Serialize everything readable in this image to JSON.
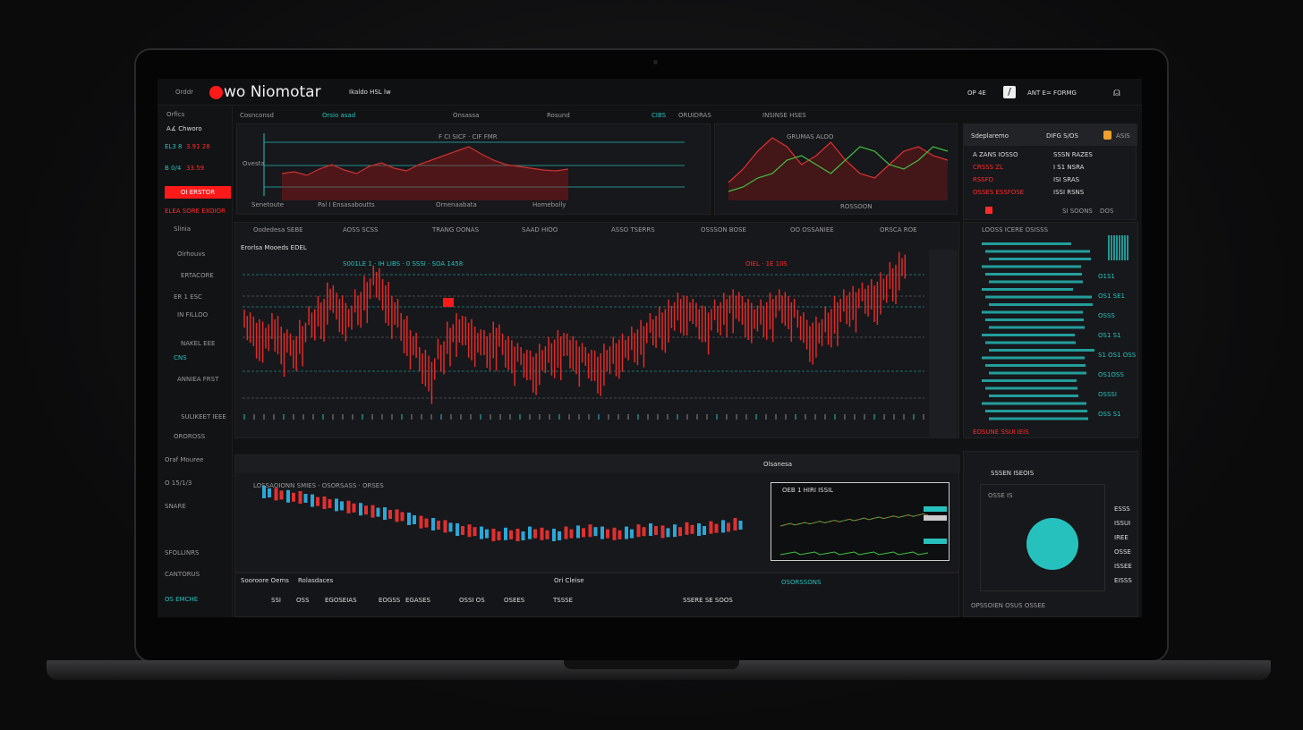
{
  "header": {
    "left_label": "Orddr",
    "logo_text": "wo Niomotar",
    "subtitle": "Ikaldo HSL lw",
    "right_label": "OP 4E",
    "right_text": "ANT E= FORMG",
    "brand_color": "#ff1a1a",
    "accent_color": "#27c1bd"
  },
  "sidebar": {
    "top": "Orfics",
    "account": "A∡ Chworo",
    "rows": [
      {
        "a": "EL3 8",
        "b": "3.91 28"
      },
      {
        "a": "B 0/4",
        "b": "33.59"
      }
    ],
    "action_button": "OI ERSTOR",
    "footer": "ELEA SORE  EXOIOR",
    "items": [
      "Slinia",
      "Oirhouvs",
      "ERTACORE",
      "ER 1 ESC",
      "IN FILLOO",
      "NAKEL EEE",
      "CNS",
      "ANNIEA FRST",
      "SULIKEET IEEE",
      "OROROSS"
    ],
    "lower": [
      "Oraf Mouree",
      "O 15/1/3",
      "SNARE",
      "SFOLLINRS",
      "CANTORUS",
      "OS EMCHE"
    ]
  },
  "top_tabs": [
    "Cosnconsd",
    "Orsio asad",
    "Onsassa",
    "Rosund",
    "CIBS",
    "ORUIDRAS",
    "INSINSE HSES"
  ],
  "panel_top_left": {
    "label": "Ovesta",
    "caption": "F CI SICF · CIF FMR",
    "footer": [
      "Senetoute",
      "Pal I Ensasaboutts",
      "Ornenaabata",
      "Homebolly"
    ]
  },
  "panel_top_right": {
    "header": "GRUMAS ALOO",
    "footer": [
      "ROSSOON",
      "O"
    ]
  },
  "account_panel": {
    "title": "Sdeplaremo",
    "col2": "DIFG S/OS",
    "badge": "ASIS",
    "rows": [
      [
        "A ZANS IOSSO",
        "SSSN RAZES"
      ],
      [
        "CRSSS ZL",
        "I S1 NSRA"
      ],
      [
        "RSSFD",
        "ISI SRAS"
      ],
      [
        "OSSES ESSFOSE",
        "ISSI RSNS"
      ]
    ],
    "footer": [
      "SI SOONS",
      "DOS"
    ]
  },
  "main_chart_header": {
    "title": "Erorlsa Mooeds EDEL",
    "tabs": [
      "Oodedesa SEBE",
      "AOSS SCSS",
      "TRANG OONAS",
      "SAAD HIOO",
      "ASSO TSERRS",
      "OSSSON BOSE",
      "OO OSSANIEE",
      "ORSCA ROE"
    ],
    "legend": "S001LE 1 · IH LIBS · 0 SSSI · SOA 1458",
    "price_tag": "OIEL · 1E 1IIS"
  },
  "chart_data": [
    {
      "type": "bar",
      "name": "main-price",
      "values": [
        62,
        58,
        55,
        60,
        52,
        48,
        56,
        64,
        70,
        78,
        72,
        66,
        74,
        82,
        88,
        80,
        70,
        60,
        50,
        40,
        35,
        45,
        55,
        60,
        58,
        52,
        50,
        55,
        48,
        44,
        40,
        38,
        42,
        46,
        50,
        48,
        44,
        40,
        38,
        42,
        46,
        48,
        52,
        56,
        60,
        64,
        68,
        72,
        70,
        66,
        64,
        68,
        72,
        74,
        70,
        66,
        68,
        72,
        74,
        70,
        62,
        56,
        58,
        64,
        70,
        74,
        76,
        78,
        80,
        84,
        90,
        96
      ]
    },
    {
      "type": "area",
      "name": "top-left-line",
      "values": [
        30,
        32,
        28,
        35,
        40,
        34,
        30,
        38,
        42,
        36,
        33,
        40,
        45,
        50,
        55,
        60,
        52,
        45,
        40,
        38,
        36,
        34,
        33,
        35
      ]
    },
    {
      "type": "line",
      "name": "top-right-lines",
      "series": [
        {
          "values": [
            20,
            35,
            55,
            70,
            60,
            40,
            50,
            65,
            45,
            30,
            25,
            40,
            55,
            60,
            50,
            45
          ]
        },
        {
          "values": [
            10,
            15,
            25,
            30,
            45,
            50,
            40,
            30,
            45,
            60,
            55,
            40,
            35,
            45,
            60,
            55
          ]
        }
      ]
    },
    {
      "type": "bar",
      "name": "bottom-candles",
      "values": [
        80,
        78,
        76,
        75,
        72,
        70,
        68,
        66,
        64,
        62,
        60,
        58,
        55,
        52,
        50,
        48,
        45,
        44,
        42,
        40,
        41,
        40,
        42,
        41,
        40,
        42,
        43,
        44,
        42,
        41,
        42,
        44,
        45,
        43,
        44,
        46,
        45,
        47,
        48,
        50
      ]
    },
    {
      "type": "pie",
      "name": "allocation",
      "values": [
        100
      ]
    }
  ],
  "bottom_panel": {
    "title": "Olsanesa",
    "legend": "LOSSAOIONN SMIES · OSORSASS · ORSES",
    "mini": "OEB 1 HIRI ISSIL",
    "status": "OSORSSONS"
  },
  "table": {
    "headers": [
      "Sooroore Oems",
      "Rolasdaces",
      "Ori Cleise"
    ],
    "row": [
      "SSI",
      "OSS",
      "EGOSEIAS",
      "EOGSS",
      "EGASES",
      "OSSI OS",
      "OSEES",
      "TSSSE",
      "SSERE SE SOOS"
    ]
  },
  "right_list": {
    "header": "LOOSS  ICERE OSISSS",
    "rows": [
      "O1S1",
      "OS1 SE1",
      "OSSS",
      "OS1 S1",
      "S1 OS1 OSS",
      "OS1OSS",
      "OSSSI",
      "OSS S1"
    ],
    "footer": "EOSUNE SSUI IEIS"
  },
  "pie_panel": {
    "title": "SSSEN ISEOIS",
    "label": "OSSE IS",
    "legend": [
      "ESSS",
      "ISSUI",
      "IREE",
      "OSSE",
      "ISSEE",
      "EISSS"
    ],
    "footer": "OPSSOIEN OSUS OSSEE"
  }
}
